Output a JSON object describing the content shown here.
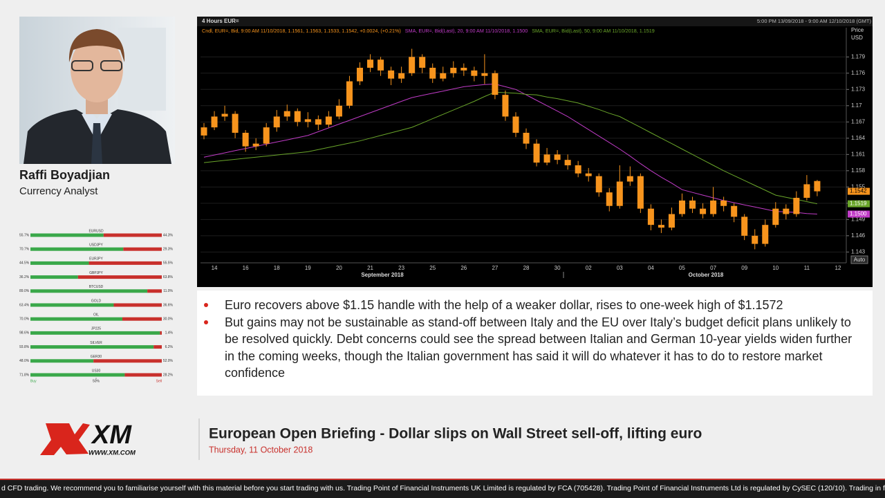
{
  "presenter": {
    "name": "Raffi Boyadjian",
    "role": "Currency Analyst"
  },
  "chart_data": [
    {
      "type": "candlestick",
      "title": "4 Hours EUR=",
      "subtitle": "5:00 PM 13/09/2018 - 9:00 AM 12/10/2018 (GMT)",
      "ylabel": "Price",
      "yunit": "USD",
      "y_axis_button": "Auto",
      "categories": [
        null,
        "14",
        null,
        null,
        "16",
        null,
        null,
        "18",
        null,
        null,
        "19",
        null,
        null,
        "20",
        null,
        null,
        "21",
        null,
        null,
        "23",
        null,
        null,
        "25",
        null,
        null,
        "26",
        null,
        null,
        "27",
        null,
        null,
        "28",
        null,
        null,
        "30",
        null,
        null,
        "02",
        null,
        null,
        "03",
        null,
        null,
        "04",
        null,
        null,
        "05",
        null,
        null,
        "07",
        null,
        null,
        "09",
        null,
        null,
        "10",
        null,
        null,
        "11",
        null,
        null,
        "12"
      ],
      "x_groups": [
        "September 2018",
        "October 2018"
      ],
      "series": [
        {
          "name": "Cndl, EUR=, Bid, 9:00 AM 11/10/2018, 1.1561, 1.1563, 1.1533, 1.1542, +0.0024, (+0.21%)",
          "color": "#f7941d",
          "price_tag": "1.1542",
          "open": [
            1.1645,
            1.166,
            1.168,
            1.1685,
            1.165,
            1.1625,
            1.163,
            1.166,
            1.168,
            1.169,
            1.167,
            1.1675,
            1.1665,
            1.168,
            1.17,
            1.1745,
            1.177,
            1.1785,
            1.1765,
            1.175,
            1.176,
            1.179,
            1.177,
            1.175,
            1.176,
            1.177,
            1.1765,
            1.1755,
            1.176,
            1.172,
            1.168,
            1.165,
            1.163,
            1.1595,
            1.161,
            1.16,
            1.159,
            1.1575,
            1.157,
            1.154,
            1.1515,
            1.156,
            1.157,
            1.151,
            1.148,
            1.1475,
            1.15,
            1.1525,
            1.151,
            1.15,
            1.1525,
            1.1515,
            1.1495,
            1.146,
            1.1445,
            1.148,
            1.151,
            1.15,
            1.153,
            1.1561,
            null,
            null
          ],
          "high": [
            1.1668,
            1.169,
            1.17,
            1.169,
            1.1655,
            1.164,
            1.1668,
            1.1692,
            1.1702,
            1.1695,
            1.1688,
            1.1682,
            1.169,
            1.1712,
            1.1755,
            1.178,
            1.1795,
            1.179,
            1.1772,
            1.1772,
            1.1805,
            1.1795,
            1.1778,
            1.1772,
            1.1782,
            1.1778,
            1.1772,
            1.1795,
            1.1765,
            1.1728,
            1.1688,
            1.1658,
            1.1638,
            1.1622,
            1.1618,
            1.161,
            1.1598,
            1.1585,
            1.1575,
            1.1548,
            1.159,
            1.1588,
            1.1575,
            1.1518,
            1.149,
            1.1512,
            1.1538,
            1.1532,
            1.152,
            1.155,
            1.1532,
            1.152,
            1.15,
            1.1472,
            1.149,
            1.1522,
            1.1518,
            1.1542,
            1.1572,
            1.1563,
            null,
            null
          ],
          "low": [
            1.1638,
            1.1655,
            1.1672,
            1.164,
            1.1615,
            1.1618,
            1.1625,
            1.1652,
            1.1672,
            1.1662,
            1.166,
            1.1655,
            1.166,
            1.1675,
            1.1695,
            1.1738,
            1.1762,
            1.1755,
            1.1738,
            1.1742,
            1.1755,
            1.176,
            1.1742,
            1.1745,
            1.1752,
            1.1755,
            1.1745,
            1.174,
            1.1712,
            1.1672,
            1.1642,
            1.162,
            1.1588,
            1.159,
            1.1592,
            1.1582,
            1.1568,
            1.156,
            1.1532,
            1.1505,
            1.151,
            1.1552,
            1.1502,
            1.147,
            1.1465,
            1.147,
            1.1495,
            1.1502,
            1.1492,
            1.1495,
            1.1505,
            1.1485,
            1.1452,
            1.1435,
            1.144,
            1.1475,
            1.149,
            1.1495,
            1.1525,
            1.1533,
            null,
            null
          ],
          "close": [
            1.166,
            1.168,
            1.1685,
            1.165,
            1.1625,
            1.163,
            1.166,
            1.168,
            1.169,
            1.167,
            1.1675,
            1.1665,
            1.168,
            1.17,
            1.1745,
            1.177,
            1.1785,
            1.1765,
            1.175,
            1.176,
            1.179,
            1.177,
            1.175,
            1.176,
            1.177,
            1.1765,
            1.1755,
            1.176,
            1.172,
            1.168,
            1.165,
            1.163,
            1.1595,
            1.161,
            1.16,
            1.159,
            1.1575,
            1.157,
            1.154,
            1.1515,
            1.156,
            1.157,
            1.151,
            1.148,
            1.1475,
            1.15,
            1.1525,
            1.151,
            1.15,
            1.1525,
            1.1515,
            1.1495,
            1.146,
            1.1445,
            1.148,
            1.151,
            1.15,
            1.153,
            1.1555,
            1.1542,
            null,
            null
          ]
        },
        {
          "name": "SMA, EUR=, Bid(Last), 20, 9:00 AM 11/10/2018, 1.1500",
          "color": "#c13cc8",
          "price_tag": "1.1500",
          "values": [
            1.1605,
            1.1609,
            1.1613,
            1.1617,
            1.1621,
            1.1625,
            1.1629,
            1.1633,
            1.1637,
            1.1641,
            1.1645,
            1.1652,
            1.1659,
            1.1666,
            1.1673,
            1.168,
            1.1687,
            1.1694,
            1.1701,
            1.1708,
            1.1715,
            1.1719,
            1.1723,
            1.1727,
            1.1731,
            1.1735,
            1.1737,
            1.1739,
            1.174,
            1.1735,
            1.173,
            1.172,
            1.171,
            1.17,
            1.169,
            1.168,
            1.1668,
            1.1656,
            1.1644,
            1.1632,
            1.162,
            1.1607,
            1.1593,
            1.158,
            1.1568,
            1.1557,
            1.1545,
            1.154,
            1.1535,
            1.153,
            1.1525,
            1.1521,
            1.1517,
            1.1513,
            1.1509,
            1.1505,
            1.1504,
            1.1503,
            1.1501,
            1.15,
            null,
            null
          ]
        },
        {
          "name": "SMA, EUR=, Bid(Last), 50, 9:00 AM 11/10/2018, 1.1519",
          "color": "#6aa62a",
          "price_tag": "1.1519",
          "values": [
            1.1595,
            1.1597,
            1.1599,
            1.1601,
            1.1603,
            1.1605,
            1.1607,
            1.1609,
            1.1611,
            1.1613,
            1.1615,
            1.1619,
            1.1623,
            1.1627,
            1.1631,
            1.1635,
            1.164,
            1.1645,
            1.165,
            1.1655,
            1.166,
            1.1668,
            1.1676,
            1.1684,
            1.1692,
            1.17,
            1.1708,
            1.1717,
            1.1725,
            1.1724,
            1.1723,
            1.1721,
            1.172,
            1.1716,
            1.1713,
            1.1709,
            1.1705,
            1.1699,
            1.1693,
            1.1686,
            1.168,
            1.167,
            1.166,
            1.165,
            1.164,
            1.163,
            1.162,
            1.161,
            1.16,
            1.159,
            1.158,
            1.1571,
            1.1562,
            1.1553,
            1.1544,
            1.1535,
            1.1531,
            1.1527,
            1.1523,
            1.1519,
            null,
            null
          ]
        }
      ],
      "ylim": [
        1.141,
        1.1844
      ],
      "yticks": [
        1.143,
        1.146,
        1.149,
        1.152,
        1.155,
        1.158,
        1.161,
        1.164,
        1.167,
        1.17,
        1.173,
        1.176,
        1.179
      ],
      "grid": true
    },
    {
      "type": "bar",
      "orientation": "horizontal",
      "stacked": true,
      "categories": [
        "EURUSD",
        "USDJPY",
        "EURJPY",
        "GBPJPY",
        "BTCUSD",
        "GOLD",
        "OIL",
        "JP225",
        "SILVER",
        "GER30",
        "US30"
      ],
      "series": [
        {
          "name": "Buy",
          "color": "#3aa84a",
          "values": [
            55.7,
            70.7,
            44.5,
            36.2,
            89.0,
            63.4,
            70.0,
            98.6,
            93.8,
            48.0,
            71.8
          ],
          "value_labels": [
            "55.7%",
            "70.7%",
            "44.5%",
            "36.2%",
            "89.0%",
            "63.4%",
            "70.0%",
            "98.6%",
            "93.8%",
            "48.0%",
            "71.8%"
          ]
        },
        {
          "name": "Sell",
          "color": "#c8302c",
          "values": [
            44.3,
            29.3,
            55.5,
            63.8,
            11.0,
            36.6,
            30.0,
            1.4,
            6.2,
            52.0,
            28.2
          ],
          "value_labels": [
            "44.3%",
            "29.3%",
            "55.5%",
            "63.8%",
            "11.0%",
            "36.6%",
            "30.0%",
            "1.4%",
            "6.2%",
            "52.0%",
            "28.2%"
          ]
        }
      ],
      "xlim": [
        0,
        100
      ],
      "xticks": [
        {
          "value": 50,
          "label": "50%"
        }
      ]
    }
  ],
  "briefing": {
    "bullets": [
      "Euro recovers above $1.15 handle with the help of a weaker dollar, rises to one-week high of $1.1572",
      "But gains may not be sustainable as stand-off between Italy and the EU over Italy’s budget deficit plans unlikely to be resolved quickly. Debt concerns could see the spread between Italian and German 10-year yields widen further in the coming weeks, though the Italian government has said it will do whatever it has to do to restore market confidence"
    ]
  },
  "footer": {
    "brand": "XM",
    "url": "WWW.XM.COM",
    "title": "European Open Briefing - Dollar slips on Wall Street sell-off, lifting euro",
    "date": "Thursday, 11 October 2018",
    "ticker": "d CFD trading. We recommend you to familiarise yourself with this material before you start trading with us. Trading Point of Financial Instruments UK Limited is regulated by FCA (705428). Trading Point of Financial Instruments Ltd is regulated by CySEC (120/10).      Trading in fo"
  }
}
